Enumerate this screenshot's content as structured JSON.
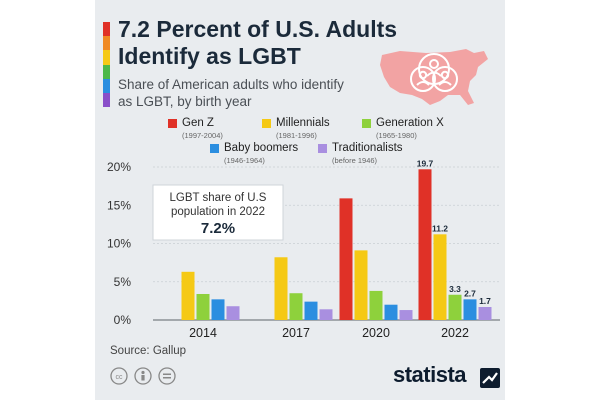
{
  "header": {
    "title": "7.2 Percent of U.S. Adults Identify as LGBT",
    "subtitle": "Share of American adults who identify as LGBT, by birth year"
  },
  "callout": {
    "line1": "LGBT share of U.S",
    "line2": "population in 2022",
    "value": "7.2%"
  },
  "legend": [
    {
      "name": "Gen Z",
      "years": "(1997-2004)",
      "color": "#e03127"
    },
    {
      "name": "Millennials",
      "years": "(1981-1996)",
      "color": "#f5c915"
    },
    {
      "name": "Generation X",
      "years": "(1965-1980)",
      "color": "#8ed13c"
    },
    {
      "name": "Baby boomers",
      "years": "(1946-1964)",
      "color": "#2b8ee0"
    },
    {
      "name": "Traditionalists",
      "years": "(before 1946)",
      "color": "#a98fe0"
    }
  ],
  "footer": {
    "source": "Source: Gallup",
    "brand": "statista"
  },
  "icons": [
    "cc-icon",
    "person-icon",
    "equals-icon",
    "usa-map-icon",
    "statista-logo-icon"
  ],
  "rainbow_colors": [
    "#e03127",
    "#f08a24",
    "#f5c915",
    "#4cb848",
    "#2b8ee0",
    "#8a4fc9"
  ],
  "chart_data": {
    "type": "bar",
    "categories": [
      "2014",
      "2017",
      "2020",
      "2022"
    ],
    "series": [
      {
        "name": "Gen Z",
        "values": [
          null,
          null,
          15.9,
          19.7
        ]
      },
      {
        "name": "Millennials",
        "values": [
          6.3,
          8.2,
          9.1,
          11.2
        ]
      },
      {
        "name": "Generation X",
        "values": [
          3.4,
          3.5,
          3.8,
          3.3
        ]
      },
      {
        "name": "Baby boomers",
        "values": [
          2.7,
          2.4,
          2.0,
          2.7
        ]
      },
      {
        "name": "Traditionalists",
        "values": [
          1.8,
          1.4,
          1.3,
          1.7
        ]
      }
    ],
    "data_labels": {
      "category": "2022",
      "labels": [
        "19.7",
        "11.2",
        "3.3",
        "2.7",
        "1.7"
      ]
    },
    "y_ticks": [
      "0%",
      "5%",
      "10%",
      "15%",
      "20%"
    ],
    "ylim": [
      0,
      20
    ],
    "grid": true,
    "legend_position": "top"
  }
}
